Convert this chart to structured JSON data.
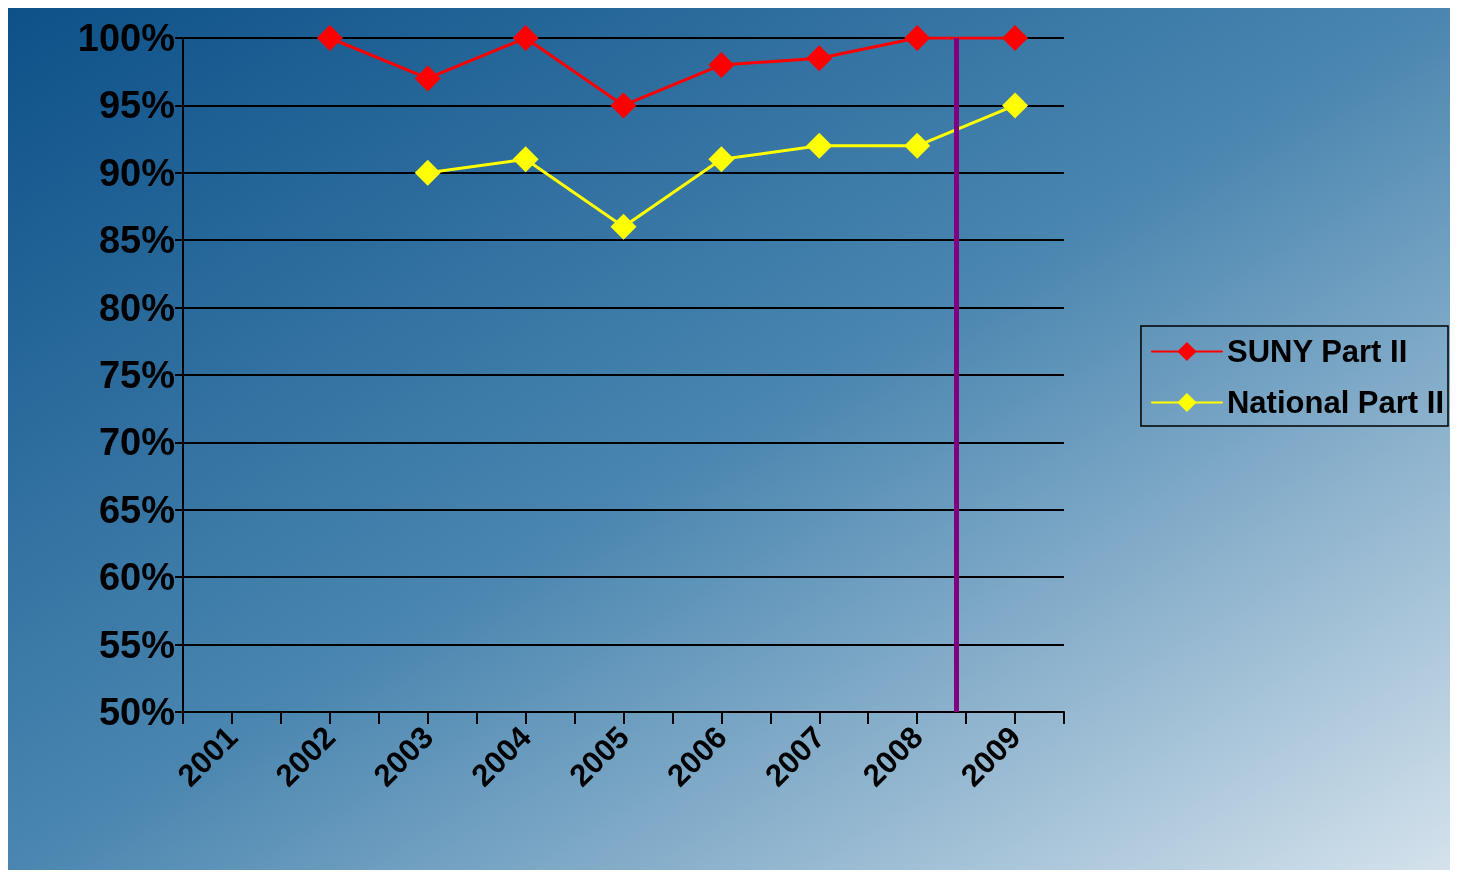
{
  "chart_data": {
    "type": "line",
    "x": [
      2002,
      2003,
      2004,
      2005,
      2006,
      2007,
      2008,
      2009
    ],
    "series": [
      {
        "name": "SUNY Part II",
        "color": "#ff0000",
        "values": [
          100,
          97,
          100,
          95,
          98,
          98.5,
          100,
          100
        ]
      },
      {
        "name": "National Part II",
        "color": "#ffff00",
        "values": [
          null,
          90,
          91,
          86,
          91,
          92,
          92,
          95
        ]
      }
    ],
    "xlim": [
      2000.5,
      2009.5
    ],
    "xticks": [
      {
        "value": 2000.5,
        "label": null
      },
      2001,
      {
        "value": 2001.5,
        "label": null
      },
      2002,
      {
        "value": 2002.5,
        "label": null
      },
      2003,
      {
        "value": 2003.5,
        "label": null
      },
      2004,
      {
        "value": 2004.5,
        "label": null
      },
      2005,
      {
        "value": 2005.5,
        "label": null
      },
      2006,
      {
        "value": 2006.5,
        "label": null
      },
      2007,
      {
        "value": 2007.5,
        "label": null
      },
      2008,
      {
        "value": 2008.5,
        "label": null
      },
      2009,
      {
        "value": 2009.5,
        "label": null
      }
    ],
    "ylim": [
      50,
      100
    ],
    "yticks": [
      {
        "value": 50,
        "label": "50%"
      },
      {
        "value": 55,
        "label": "55%"
      },
      {
        "value": 60,
        "label": "60%"
      },
      {
        "value": 65,
        "label": "65%"
      },
      {
        "value": 70,
        "label": "70%"
      },
      {
        "value": 75,
        "label": "75%"
      },
      {
        "value": 80,
        "label": "80%"
      },
      {
        "value": 85,
        "label": "85%"
      },
      {
        "value": 90,
        "label": "90%"
      },
      {
        "value": 95,
        "label": "95%"
      },
      {
        "value": 100,
        "label": "100%"
      }
    ],
    "ref_lines": [
      {
        "axis": "x",
        "value": 2008.4,
        "color": "#800080"
      }
    ],
    "grid": "y",
    "legend": "right",
    "marker": "diamond",
    "line_style": "solid"
  }
}
